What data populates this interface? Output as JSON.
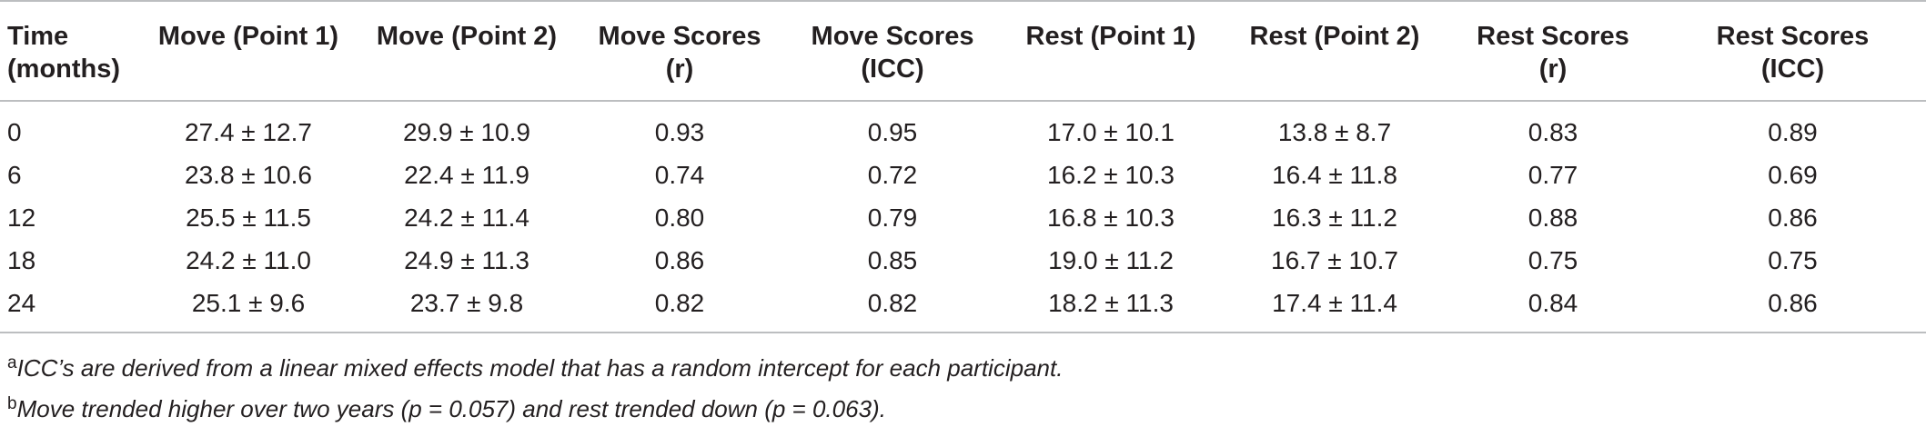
{
  "table": {
    "headers": [
      "Time (months)",
      "Move (Point 1)",
      "Move (Point 2)",
      "Move Scores (r)",
      "Move Scores (ICC)",
      "Rest (Point 1)",
      "Rest (Point 2)",
      "Rest Scores (r)",
      "Rest Scores (ICC)"
    ],
    "header_lines": [
      [
        "Time",
        "(months)"
      ],
      [
        "Move (Point 1)"
      ],
      [
        "Move (Point 2)"
      ],
      [
        "Move Scores",
        "(r)"
      ],
      [
        "Move Scores",
        "(ICC)"
      ],
      [
        "Rest (Point 1)"
      ],
      [
        "Rest (Point 2)"
      ],
      [
        "Rest Scores",
        "(r)"
      ],
      [
        "Rest Scores",
        "(ICC)"
      ]
    ],
    "rows": [
      [
        "0",
        "27.4 ± 12.7",
        "29.9 ± 10.9",
        "0.93",
        "0.95",
        "17.0 ± 10.1",
        "13.8 ± 8.7",
        "0.83",
        "0.89"
      ],
      [
        "6",
        "23.8 ± 10.6",
        "22.4 ± 11.9",
        "0.74",
        "0.72",
        "16.2 ± 10.3",
        "16.4 ± 11.8",
        "0.77",
        "0.69"
      ],
      [
        "12",
        "25.5 ± 11.5",
        "24.2 ± 11.4",
        "0.80",
        "0.79",
        "16.8 ± 10.3",
        "16.3 ± 11.2",
        "0.88",
        "0.86"
      ],
      [
        "18",
        "24.2 ± 11.0",
        "24.9 ± 11.3",
        "0.86",
        "0.85",
        "19.0 ± 11.2",
        "16.7 ± 10.7",
        "0.75",
        "0.75"
      ],
      [
        "24",
        "25.1 ± 9.6",
        "23.7 ± 9.8",
        "0.82",
        "0.82",
        "18.2 ± 11.3",
        "17.4 ± 11.4",
        "0.84",
        "0.86"
      ]
    ]
  },
  "footnotes": [
    {
      "mark": "a",
      "text": "ICC’s are derived from a linear mixed effects model that has a random intercept for each participant."
    },
    {
      "mark": "b",
      "text": "Move trended higher over two years (p = 0.057) and rest trended down (p = 0.063)."
    }
  ]
}
